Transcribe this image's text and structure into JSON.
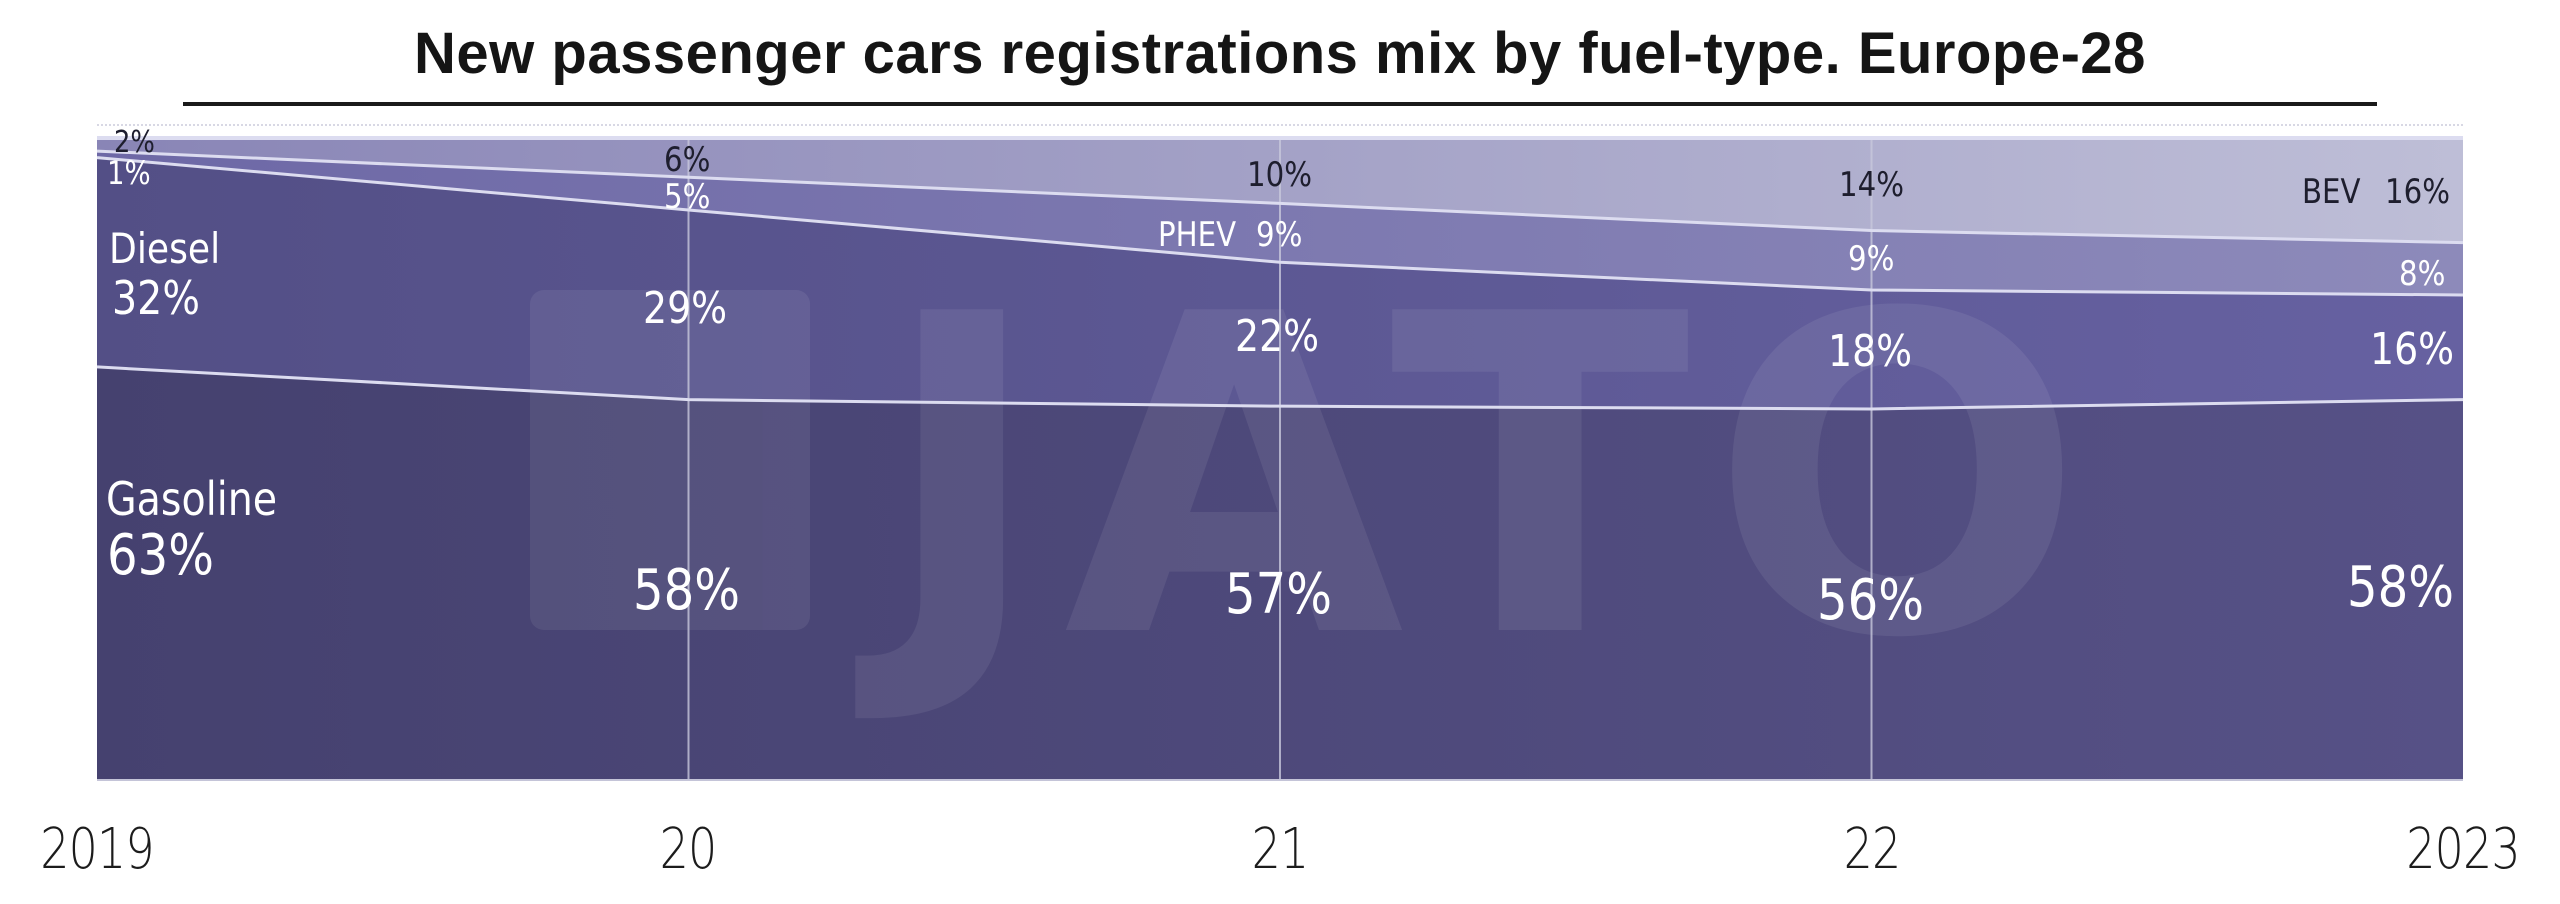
{
  "title": "New passenger cars registrations mix by fuel-type. Europe-28",
  "colors": {
    "gasoline_left": "#45416f",
    "gasoline_right": "#565186",
    "diesel_left": "#534f86",
    "diesel_right": "#6661a1",
    "phev_left": "#6d68a6",
    "phev_right": "#8d8aba",
    "bev_left": "#8985b6",
    "bev_right": "#bebed7",
    "boundary": "#dcdcf0",
    "gridline": "#c8c8dc"
  },
  "x_axis": {
    "labels": [
      "2019",
      "20",
      "21",
      "22",
      "2023"
    ]
  },
  "labels": {
    "bev_2019": "2%",
    "phev_2019": "1%",
    "diesel_name": "Diesel",
    "diesel_2019": "32%",
    "gasoline_name": "Gasoline",
    "gasoline_2019": "63%",
    "bev_2020": "6%",
    "phev_2020": "5%",
    "diesel_2020": "29%",
    "gasoline_2020": "58%",
    "bev_2021": "10%",
    "phev_name_2021": "PHEV",
    "phev_2021": "9%",
    "diesel_2021": "22%",
    "gasoline_2021": "57%",
    "bev_2022": "14%",
    "phev_2022": "9%",
    "diesel_2022": "18%",
    "gasoline_2022": "56%",
    "bev_name_2023": "BEV",
    "bev_2023": "16%",
    "phev_2023": "8%",
    "diesel_2023": "16%",
    "gasoline_2023": "58%"
  },
  "watermark": "JATO",
  "chart_data": {
    "type": "area",
    "stacked": true,
    "title": "New passenger cars registrations mix by fuel-type. Europe-28",
    "xlabel": "",
    "ylabel": "",
    "categories": [
      "2019",
      "2020",
      "2021",
      "2022",
      "2023"
    ],
    "x_tick_labels": [
      "2019",
      "20",
      "21",
      "22",
      "2023"
    ],
    "series": [
      {
        "name": "Gasoline",
        "values": [
          63,
          58,
          57,
          56,
          58
        ]
      },
      {
        "name": "Diesel",
        "values": [
          32,
          29,
          22,
          18,
          16
        ]
      },
      {
        "name": "PHEV",
        "values": [
          1,
          5,
          9,
          9,
          8
        ]
      },
      {
        "name": "BEV",
        "values": [
          2,
          6,
          10,
          14,
          16
        ]
      }
    ],
    "ylim": [
      0,
      100
    ],
    "unit": "%",
    "grid": "vertical lines at each year",
    "legend": "inline labels (Diesel, Gasoline, PHEV, BEV)"
  }
}
